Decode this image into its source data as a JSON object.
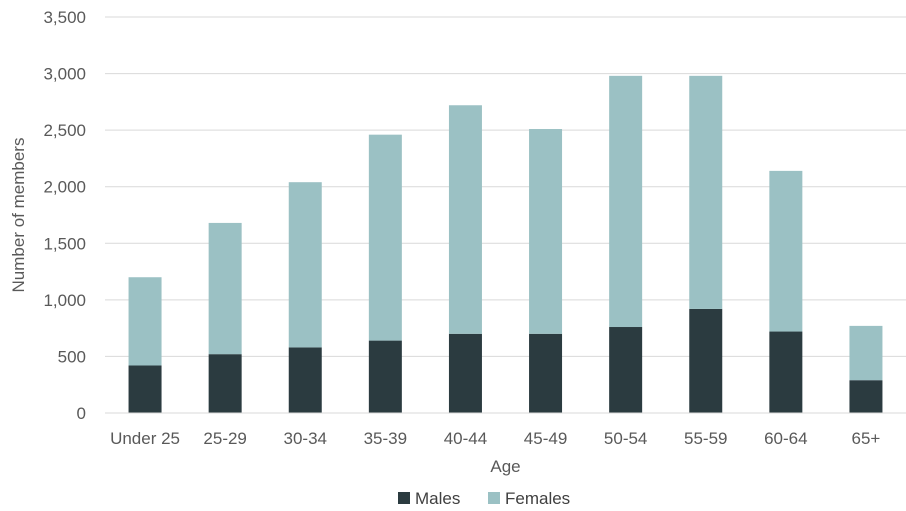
{
  "chart_data": {
    "type": "bar",
    "stacked": true,
    "title": "",
    "xlabel": "Age",
    "ylabel": "Number of members",
    "ylim": [
      0,
      3500
    ],
    "yticks": [
      0,
      500,
      1000,
      1500,
      2000,
      2500,
      3000,
      3500
    ],
    "ytick_labels": [
      "0",
      "500",
      "1,000",
      "1,500",
      "2,000",
      "2,500",
      "3,000",
      "3,500"
    ],
    "grid": true,
    "legend_position": "bottom",
    "categories": [
      "Under 25",
      "25-29",
      "30-34",
      "35-39",
      "40-44",
      "45-49",
      "50-54",
      "55-59",
      "60-64",
      "65+"
    ],
    "series": [
      {
        "name": "Males",
        "color": "#2b3b40",
        "values": [
          420,
          520,
          580,
          640,
          700,
          700,
          760,
          920,
          720,
          290
        ]
      },
      {
        "name": "Females",
        "color": "#9bc1c4",
        "values": [
          780,
          1160,
          1460,
          1820,
          2020,
          1810,
          2220,
          2060,
          1420,
          480
        ]
      }
    ]
  }
}
